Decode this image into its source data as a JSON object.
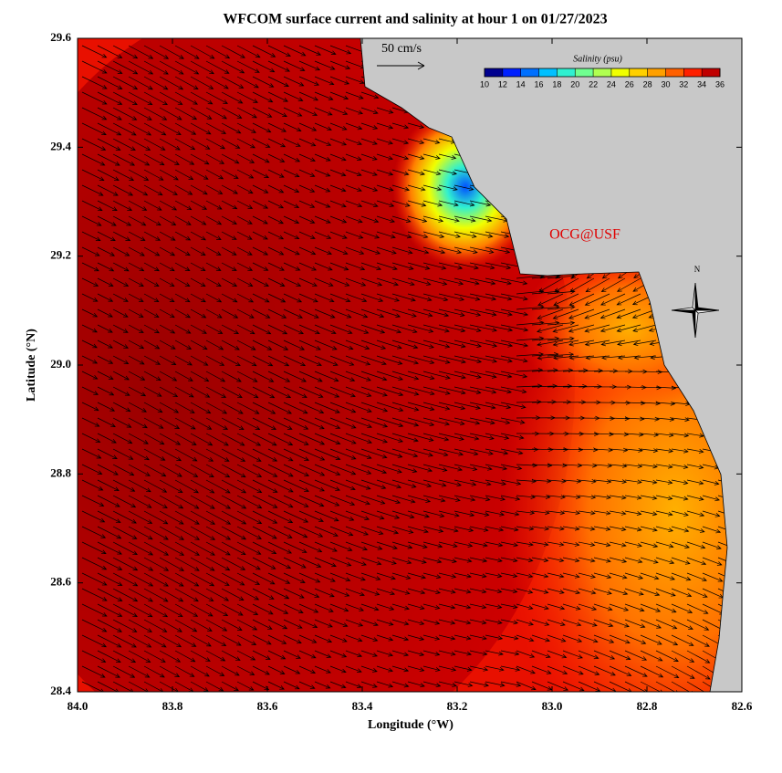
{
  "title": "WFCOM surface current and salinity at hour 1 on 01/27/2023",
  "x_axis": {
    "label": "Longitude (°W)",
    "lim": [
      84.0,
      82.6
    ],
    "ticks": [
      {
        "value": 84.0,
        "label": "84.0"
      },
      {
        "value": 83.8,
        "label": "83.8"
      },
      {
        "value": 83.6,
        "label": "83.6"
      },
      {
        "value": 83.4,
        "label": "83.4"
      },
      {
        "value": 83.2,
        "label": "83.2"
      },
      {
        "value": 83.0,
        "label": "83.0"
      },
      {
        "value": 82.8,
        "label": "82.8"
      },
      {
        "value": 82.6,
        "label": "82.6"
      }
    ]
  },
  "y_axis": {
    "label": "Latitude (°N)",
    "lim": [
      28.4,
      29.6
    ],
    "ticks": [
      {
        "value": 28.4,
        "label": "28.4"
      },
      {
        "value": 28.6,
        "label": "28.6"
      },
      {
        "value": 28.8,
        "label": "28.8"
      },
      {
        "value": 29.0,
        "label": "29.0"
      },
      {
        "value": 29.2,
        "label": "29.2"
      },
      {
        "value": 29.4,
        "label": "29.4"
      },
      {
        "value": 29.6,
        "label": "29.6"
      }
    ]
  },
  "colorbar": {
    "title": "Salinity (psu)",
    "lim": [
      10,
      36
    ],
    "ticks": [
      10,
      12,
      14,
      16,
      18,
      20,
      22,
      24,
      26,
      28,
      30,
      32,
      34,
      36
    ],
    "colors": [
      "#00008f",
      "#0020ff",
      "#0070ff",
      "#00c0ff",
      "#30f0d0",
      "#70ff90",
      "#b0ff50",
      "#f0ff00",
      "#ffd000",
      "#ffa000",
      "#ff6000",
      "#ff2000",
      "#c00000"
    ]
  },
  "scale_arrow": "50 cm/s",
  "credit": "OCG@USF",
  "compass": "N"
}
